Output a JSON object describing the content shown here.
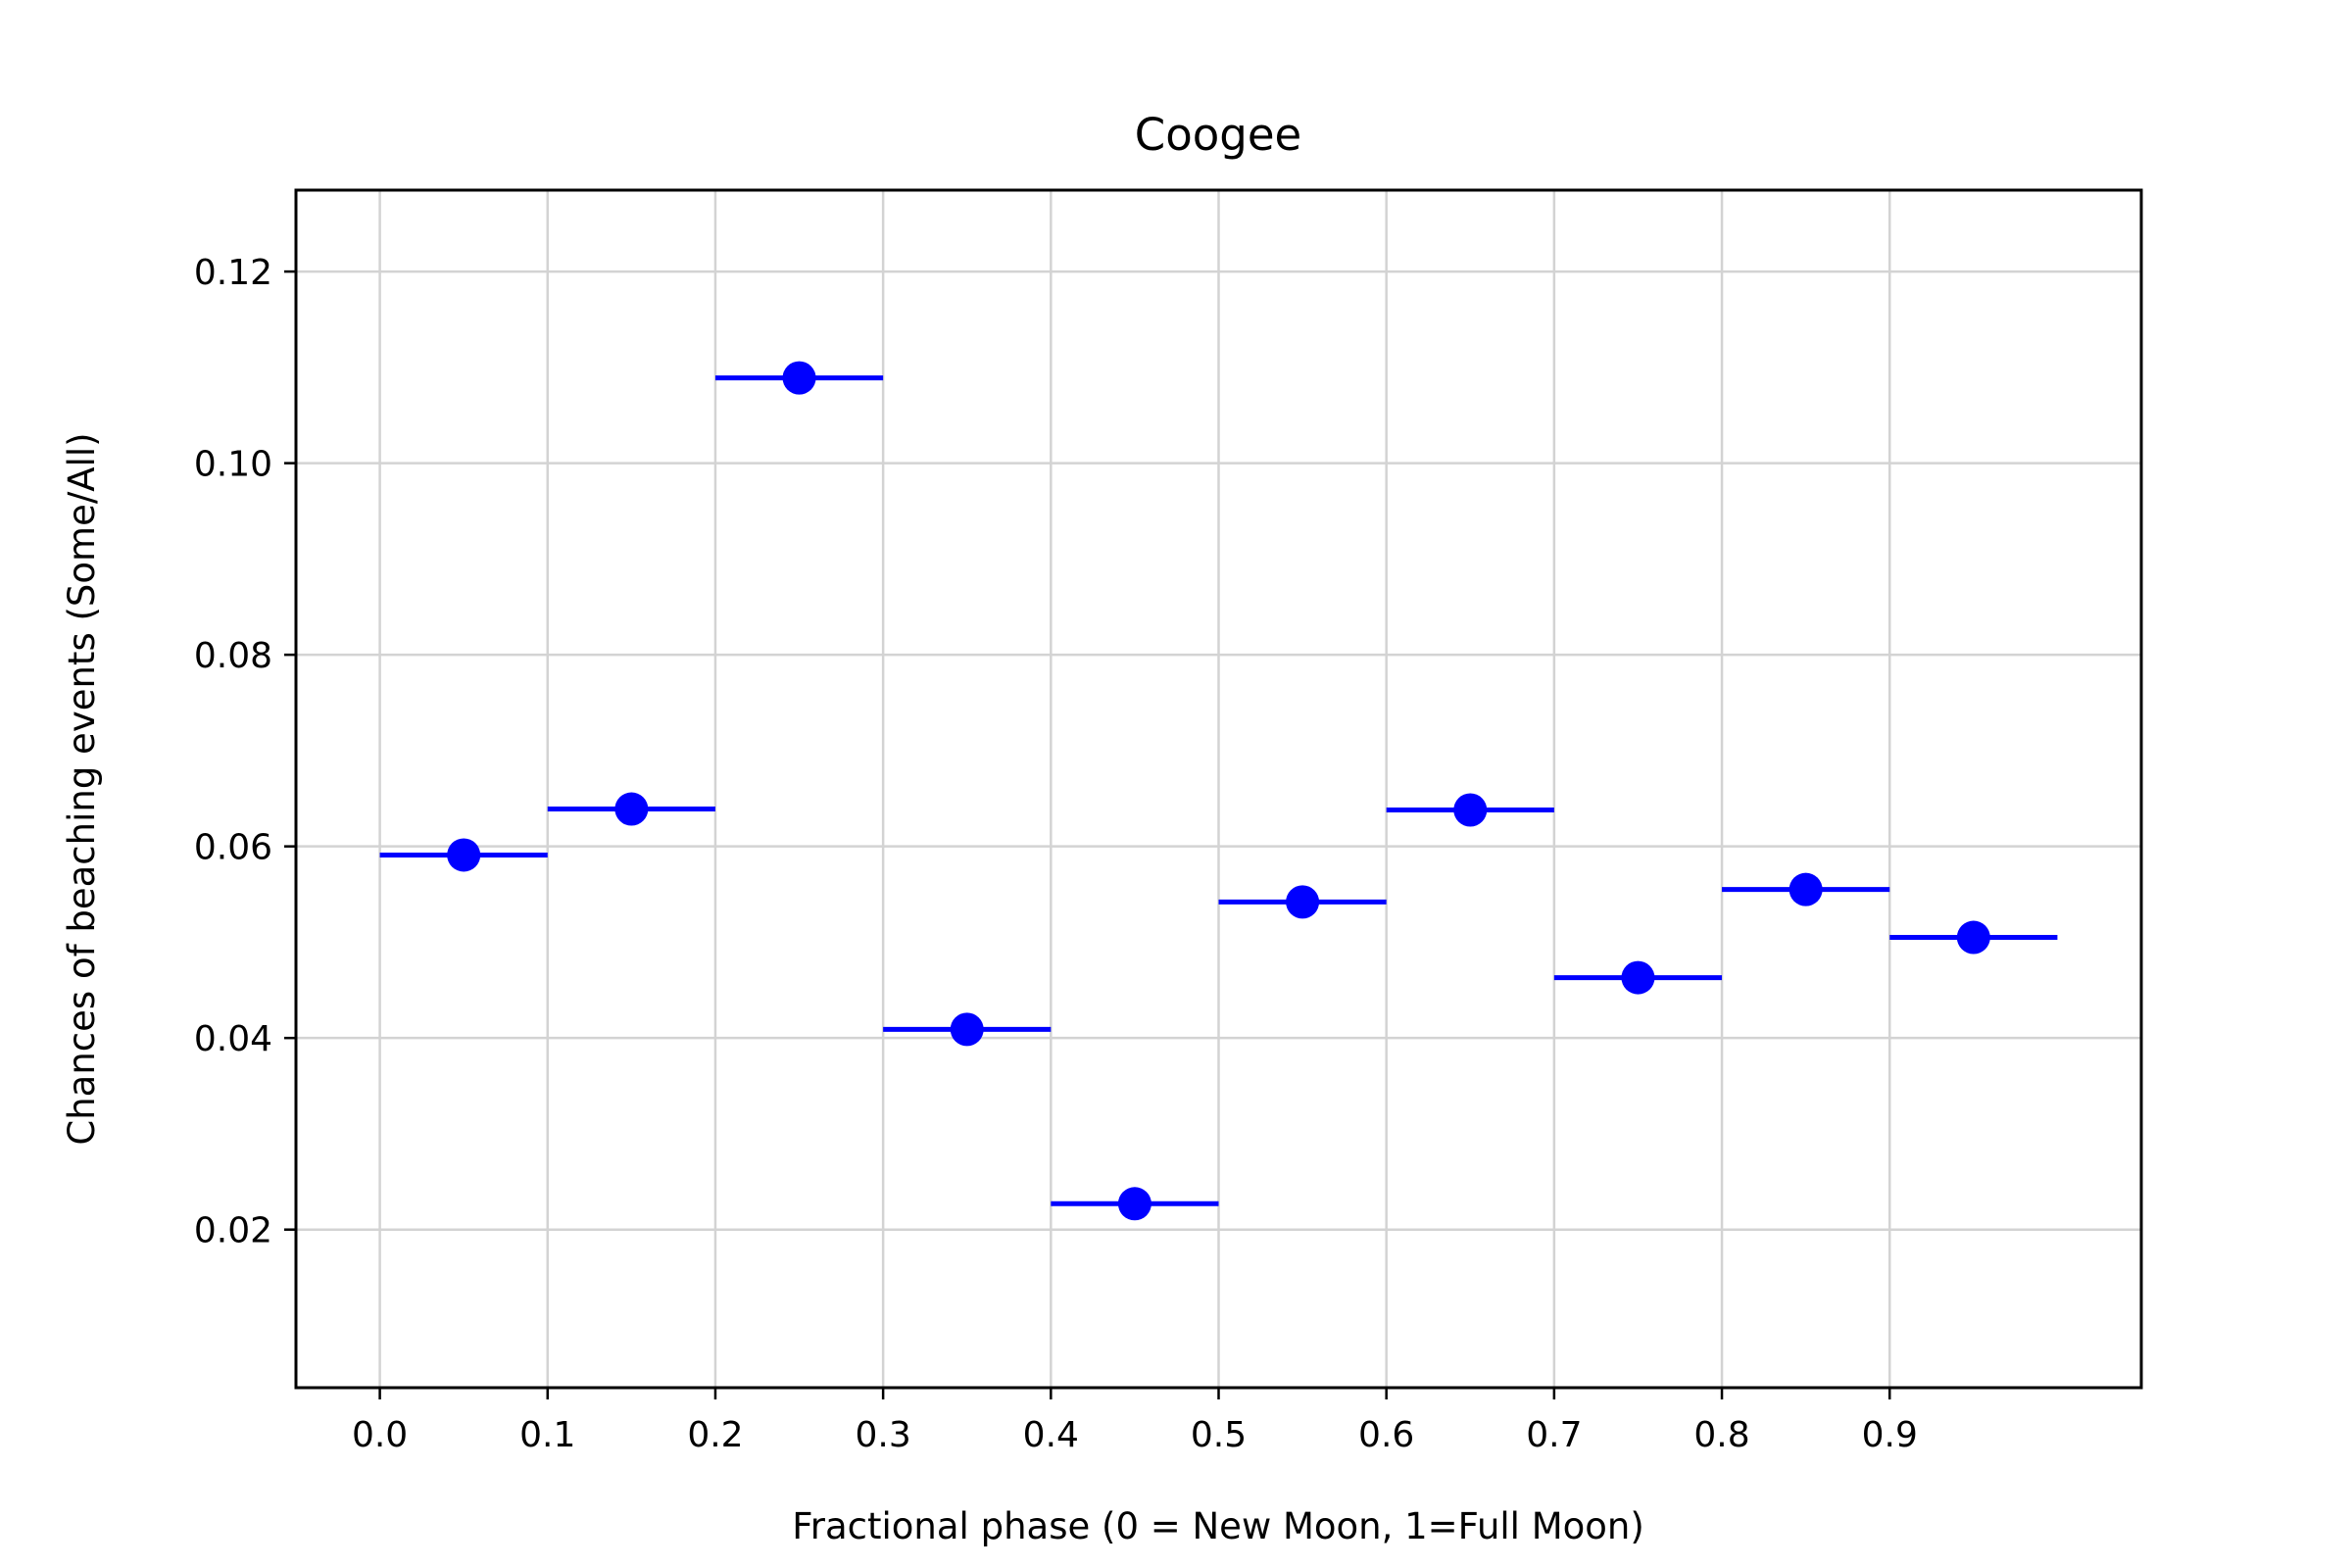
{
  "chart_data": {
    "type": "scatter",
    "title": "Coogee",
    "xlabel": "Fractional phase (0 = New Moon, 1=Full Moon)",
    "ylabel": "Chances of beaching events (Some/All)",
    "xlim": [
      -0.05,
      1.05
    ],
    "ylim": [
      0.0035,
      0.1285
    ],
    "xticks": [
      0.0,
      0.1,
      0.2,
      0.3,
      0.4,
      0.5,
      0.6,
      0.7,
      0.8,
      0.9
    ],
    "xtick_labels": [
      "0.0",
      "0.1",
      "0.2",
      "0.3",
      "0.4",
      "0.5",
      "0.6",
      "0.7",
      "0.8",
      "0.9"
    ],
    "yticks": [
      0.02,
      0.04,
      0.06,
      0.08,
      0.1,
      0.12
    ],
    "ytick_labels": [
      "0.02",
      "0.04",
      "0.06",
      "0.08",
      "0.10",
      "0.12"
    ],
    "grid": true,
    "color": "#0000ff",
    "points": [
      {
        "x": 0.05,
        "y": 0.0591,
        "xerr": 0.05
      },
      {
        "x": 0.15,
        "y": 0.0639,
        "xerr": 0.05
      },
      {
        "x": 0.25,
        "y": 0.1089,
        "xerr": 0.05
      },
      {
        "x": 0.35,
        "y": 0.0409,
        "xerr": 0.05
      },
      {
        "x": 0.45,
        "y": 0.0227,
        "xerr": 0.05
      },
      {
        "x": 0.55,
        "y": 0.0542,
        "xerr": 0.05
      },
      {
        "x": 0.65,
        "y": 0.0638,
        "xerr": 0.05
      },
      {
        "x": 0.75,
        "y": 0.0463,
        "xerr": 0.05
      },
      {
        "x": 0.85,
        "y": 0.0555,
        "xerr": 0.05
      },
      {
        "x": 0.95,
        "y": 0.0505,
        "xerr": 0.05
      }
    ]
  }
}
